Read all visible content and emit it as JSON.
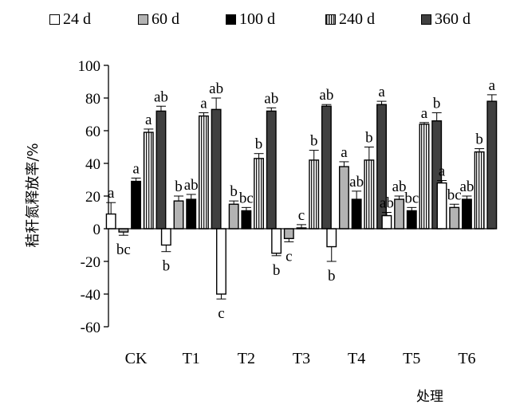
{
  "chart_data": {
    "type": "bar",
    "xlabel": "处理",
    "ylabel": "秸秆氮释放率/%",
    "categories": [
      "CK",
      "T1",
      "T2",
      "T3",
      "T4",
      "T5",
      "T6"
    ],
    "ylim": [
      -60,
      100
    ],
    "yticks": [
      "-60",
      "-40",
      "-20",
      "0",
      "20",
      "40",
      "60",
      "80",
      "100"
    ],
    "legend_position": "top",
    "series": [
      {
        "name": "24 d",
        "color": "#ffffff",
        "values": [
          9,
          -10,
          -40,
          -15,
          -11,
          8,
          28
        ],
        "errors": [
          7,
          4,
          3,
          1.5,
          9,
          2,
          1.5
        ],
        "letters": [
          "a",
          "b",
          "c",
          "b",
          "b",
          "ab",
          "a"
        ]
      },
      {
        "name": "60 d",
        "color": "#b3b3b3",
        "values": [
          -2,
          17,
          15,
          -6,
          38,
          18,
          13
        ],
        "errors": [
          2,
          3,
          2,
          2,
          3,
          2,
          2
        ],
        "letters": [
          "bc",
          "b",
          "b",
          "c",
          "a",
          "ab",
          "bc"
        ]
      },
      {
        "name": "100 d",
        "color": "#000000",
        "values": [
          29,
          18,
          11,
          0.5,
          18,
          11,
          18
        ],
        "errors": [
          2,
          3,
          2,
          2,
          5,
          2,
          2
        ],
        "letters": [
          "a",
          "ab",
          "bc",
          "c",
          "ab",
          "bc",
          "ab"
        ]
      },
      {
        "name": "240 d",
        "color": "#d8e8c0",
        "values": [
          59,
          69,
          43,
          42,
          42,
          64,
          47
        ],
        "errors": [
          2,
          2,
          3,
          6,
          8,
          1,
          2
        ],
        "letters": [
          "a",
          "a",
          "b",
          "b",
          "b",
          "a",
          "b"
        ]
      },
      {
        "name": "360 d",
        "color": "#404040",
        "values": [
          72,
          73,
          72,
          75,
          76,
          66,
          78
        ],
        "errors": [
          3,
          7,
          2,
          1,
          2,
          5,
          4
        ],
        "letters": [
          "ab",
          "ab",
          "ab",
          "ab",
          "a",
          "b",
          "a"
        ]
      }
    ]
  }
}
